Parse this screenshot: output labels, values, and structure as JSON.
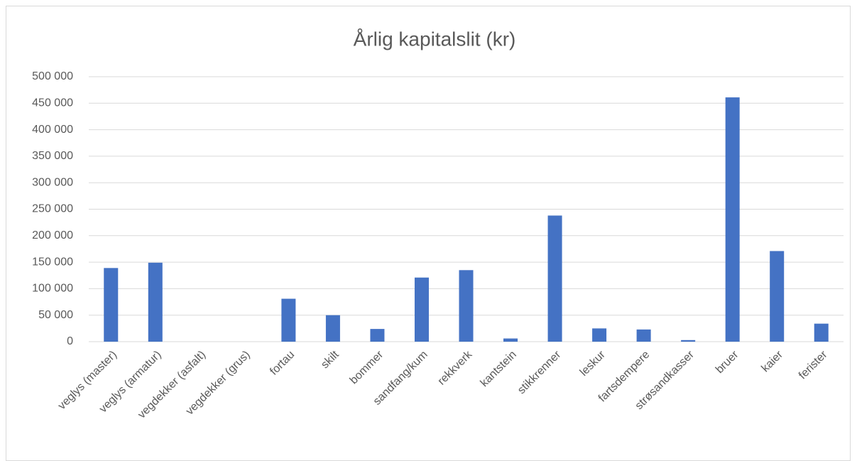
{
  "chart_data": {
    "type": "bar",
    "title": "Årlig kapitalslit (kr)",
    "categories": [
      "veglys (master)",
      "veglys (armatur)",
      "vegdekker (asfalt)",
      "vegdekker (grus)",
      "fortau",
      "skilt",
      "bommer",
      "sandfang/kum",
      "rekkverk",
      "kantstein",
      "stikkrenner",
      "leskur",
      "fartsdempere",
      "strøsandkasser",
      "bruer",
      "kaier",
      "ferister"
    ],
    "values": [
      139000,
      149000,
      0,
      0,
      81000,
      50000,
      24000,
      121000,
      135000,
      6000,
      238000,
      25000,
      23000,
      3000,
      461000,
      171000,
      34000
    ],
    "color": "#4472c4",
    "ylim": [
      0,
      500000
    ],
    "yticks": [
      0,
      {
        "value": 50000,
        "label": "50 000"
      },
      {
        "value": 100000,
        "label": "100 000"
      },
      {
        "value": 150000,
        "label": "150 000"
      },
      {
        "value": 200000,
        "label": "200 000"
      },
      {
        "value": 250000,
        "label": "250 000"
      },
      {
        "value": 300000,
        "label": "300 000"
      },
      {
        "value": 350000,
        "label": "350 000"
      },
      {
        "value": 400000,
        "label": "400 000"
      },
      {
        "value": 450000,
        "label": "450 000"
      },
      {
        "value": 500000,
        "label": "500 000"
      }
    ],
    "grid": true
  }
}
